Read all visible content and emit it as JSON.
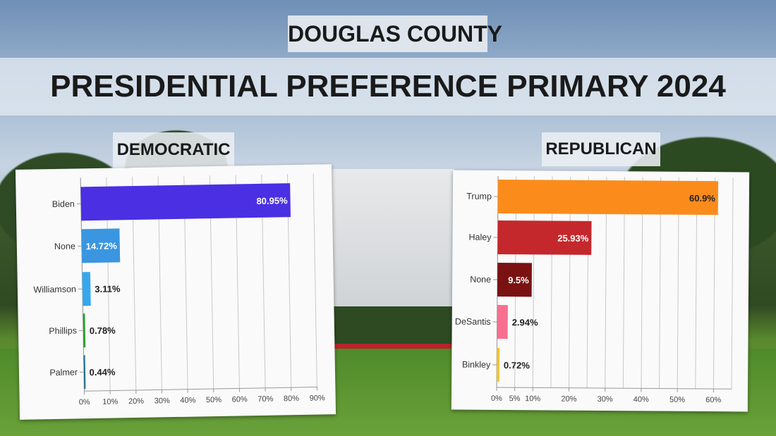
{
  "header": {
    "county": "DOUGLAS COUNTY",
    "title": "PRESIDENTIAL PREFERENCE PRIMARY 2024"
  },
  "chart_data": [
    {
      "type": "bar",
      "orientation": "horizontal",
      "title": "DEMOCRATIC",
      "categories": [
        "Biden",
        "None",
        "Williamson",
        "Phillips",
        "Palmer"
      ],
      "values": [
        80.95,
        14.72,
        3.11,
        0.78,
        0.44
      ],
      "data_labels": [
        "80.95%",
        "14.72%",
        "3.11%",
        "0.78%",
        "0.44%"
      ],
      "colors": [
        "#4b2fe3",
        "#3a96e0",
        "#36a8ee",
        "#2ea12e",
        "#1f6f8a"
      ],
      "xlim": [
        0,
        90
      ],
      "ticks": [
        0,
        10,
        20,
        30,
        40,
        50,
        60,
        70,
        80,
        90
      ],
      "tick_labels": [
        "0%",
        "10%",
        "20%",
        "30%",
        "40%",
        "50%",
        "60%",
        "70%",
        "80%",
        "90%"
      ],
      "grid": true
    },
    {
      "type": "bar",
      "orientation": "horizontal",
      "title": "REPUBLICAN",
      "categories": [
        "Trump",
        "Haley",
        "None",
        "DeSantis",
        "Binkley"
      ],
      "values": [
        60.9,
        25.93,
        9.5,
        2.94,
        0.72
      ],
      "data_labels": [
        "60.9%",
        "25.93%",
        "9.5%",
        "2.94%",
        "0.72%"
      ],
      "colors": [
        "#fb8c1c",
        "#c4282c",
        "#7a1212",
        "#f76f8f",
        "#f5c331"
      ],
      "xlim": [
        0,
        65
      ],
      "ticks": [
        0,
        5,
        10,
        20,
        30,
        40,
        50,
        60
      ],
      "tick_labels": [
        "0%",
        "5%",
        "10%",
        "20%",
        "30%",
        "40%",
        "50%",
        "60%"
      ],
      "gridlines": [
        0,
        5,
        10,
        15,
        20,
        25,
        30,
        35,
        40,
        45,
        50,
        55,
        60,
        65
      ],
      "grid": true
    }
  ]
}
